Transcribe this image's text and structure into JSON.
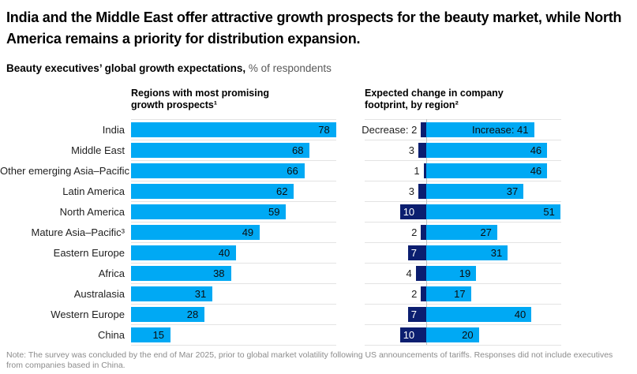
{
  "page": {
    "title": "India and the Middle East offer attractive growth prospects for the beauty market, while North America remains a priority for distribution expansion.",
    "subtitle_bold": "Beauty executives’ global growth expectations,",
    "subtitle_unit": "% of respondents",
    "note": "Note: The survey was concluded by the end of Mar 2025, prior to global market volatility following US announcements of tariffs. Responses did not include executives from companies based in China."
  },
  "colors": {
    "accent_blue": "#00A9F4",
    "navy": "#0B1E70",
    "gridline": "#E3E3E3",
    "axis_line": "#BFBFBF",
    "note_gray": "#8C8C8C"
  },
  "chart_data": [
    {
      "type": "bar",
      "orientation": "horizontal",
      "title": "Regions with most promising\ngrowth prospects¹",
      "unit": "% of respondents",
      "categories": [
        "India",
        "Middle East",
        "Other emerging Asia–Pacific",
        "Latin America",
        "North America",
        "Mature Asia–Pacific³",
        "Eastern Europe",
        "Africa",
        "Australasia",
        "Western Europe",
        "China"
      ],
      "values": [
        78,
        68,
        66,
        62,
        59,
        49,
        40,
        38,
        31,
        28,
        15
      ],
      "bar_color": "#00A9F4",
      "xlim": [
        0,
        78
      ],
      "grid": "row-separators",
      "legend": "none"
    },
    {
      "type": "bar",
      "orientation": "horizontal-diverging",
      "title": "Expected change in company\nfootprint, by region²",
      "unit": "% of respondents",
      "categories": [
        "India",
        "Middle East",
        "Other emerging Asia–Pacific",
        "Latin America",
        "North America",
        "Mature Asia–Pacific³",
        "Eastern Europe",
        "Africa",
        "Australasia",
        "Western Europe",
        "China"
      ],
      "series": [
        {
          "name": "Decrease",
          "color": "#0B1E70",
          "values": [
            2,
            3,
            1,
            3,
            10,
            2,
            7,
            4,
            2,
            7,
            10
          ]
        },
        {
          "name": "Increase",
          "color": "#00A9F4",
          "values": [
            41,
            46,
            46,
            37,
            51,
            27,
            31,
            19,
            17,
            40,
            20
          ]
        }
      ],
      "xlim": [
        -23,
        51
      ],
      "grid": "row-separators-and-zero-axis",
      "legend": "inline-first-row"
    }
  ]
}
